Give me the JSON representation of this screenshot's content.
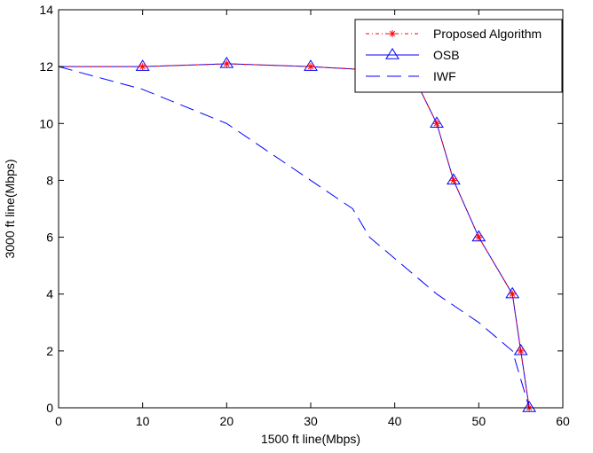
{
  "chart_data": {
    "type": "line",
    "xlabel": "1500 ft line(Mbps)",
    "ylabel": "3000 ft line(Mbps)",
    "xlim": [
      0,
      60
    ],
    "ylim": [
      0,
      14
    ],
    "xticks": [
      0,
      10,
      20,
      30,
      40,
      50,
      60
    ],
    "yticks": [
      0,
      2,
      4,
      6,
      8,
      10,
      12,
      14
    ],
    "grid": false,
    "legend_position": "top-right",
    "series": [
      {
        "name": "Proposed Algorithm",
        "color": "#ff0000",
        "line_style": "dash-dot",
        "marker": "asterisk",
        "points": [
          [
            0,
            12
          ],
          [
            10,
            12
          ],
          [
            20,
            12.1
          ],
          [
            30,
            12
          ],
          [
            42,
            11.8
          ],
          [
            45,
            10
          ],
          [
            47,
            8
          ],
          [
            50,
            6
          ],
          [
            54,
            4
          ],
          [
            55,
            2
          ],
          [
            56,
            0
          ]
        ]
      },
      {
        "name": "OSB",
        "color": "#0000ff",
        "line_style": "solid",
        "marker": "triangle",
        "points": [
          [
            0,
            12
          ],
          [
            10,
            12
          ],
          [
            20,
            12.1
          ],
          [
            30,
            12
          ],
          [
            42,
            11.8
          ],
          [
            45,
            10
          ],
          [
            47,
            8
          ],
          [
            50,
            6
          ],
          [
            54,
            4
          ],
          [
            55,
            2
          ],
          [
            56,
            0
          ]
        ]
      },
      {
        "name": "IWF",
        "color": "#0000ff",
        "line_style": "long-dash",
        "marker": "none",
        "points": [
          [
            0,
            12
          ],
          [
            10,
            11.2
          ],
          [
            20,
            10
          ],
          [
            30,
            8
          ],
          [
            35,
            7
          ],
          [
            37,
            6
          ],
          [
            45,
            4
          ],
          [
            50,
            3
          ],
          [
            54,
            2
          ],
          [
            56,
            0
          ]
        ]
      }
    ]
  }
}
